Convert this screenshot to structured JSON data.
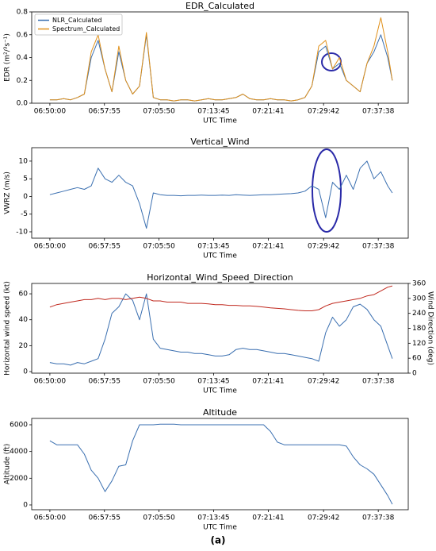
{
  "chart_data": [
    {
      "type": "line",
      "title": "EDR_Calculated",
      "xlabel": "UTC Time",
      "ylabel": "EDR (m²/³s⁻¹)",
      "legend": "upper left",
      "xlim": [
        "06:47:22",
        "07:41:59"
      ],
      "xticks": [
        "06:50:00",
        "06:57:55",
        "07:05:50",
        "07:13:45",
        "07:21:41",
        "07:29:42",
        "07:37:38"
      ],
      "ylim": [
        0,
        0.8
      ],
      "yticks": [
        {
          "value": 0,
          "label": "0.0"
        },
        {
          "value": 0.2,
          "label": "0.2"
        },
        {
          "value": 0.4,
          "label": "0.4"
        },
        {
          "value": 0.6,
          "label": "0.6"
        },
        {
          "value": 0.8,
          "label": "0.8"
        }
      ],
      "x": [
        "06:50:00",
        "06:51:00",
        "06:52:00",
        "06:53:00",
        "06:54:00",
        "06:55:00",
        "06:56:00",
        "06:57:00",
        "06:58:00",
        "06:59:00",
        "07:00:00",
        "07:01:00",
        "07:02:00",
        "07:03:00",
        "07:04:00",
        "07:05:00",
        "07:06:00",
        "07:07:00",
        "07:08:00",
        "07:09:00",
        "07:10:00",
        "07:11:00",
        "07:12:00",
        "07:13:00",
        "07:14:00",
        "07:15:00",
        "07:16:00",
        "07:17:00",
        "07:18:00",
        "07:19:00",
        "07:20:00",
        "07:21:00",
        "07:22:00",
        "07:23:00",
        "07:24:00",
        "07:25:00",
        "07:26:00",
        "07:27:00",
        "07:28:00",
        "07:29:00",
        "07:30:00",
        "07:31:00",
        "07:32:00",
        "07:33:00",
        "07:34:00",
        "07:35:00",
        "07:36:00",
        "07:37:00",
        "07:38:00",
        "07:39:00",
        "07:39:40"
      ],
      "series": [
        {
          "name": "NLR_Calculated",
          "color": "#3a6fb0",
          "values": [
            0.03,
            0.03,
            0.04,
            0.03,
            0.05,
            0.08,
            0.4,
            0.55,
            0.3,
            0.1,
            0.45,
            0.2,
            0.08,
            0.15,
            0.6,
            0.05,
            0.03,
            0.03,
            0.02,
            0.03,
            0.03,
            0.02,
            0.03,
            0.04,
            0.03,
            0.03,
            0.04,
            0.05,
            0.08,
            0.04,
            0.03,
            0.03,
            0.04,
            0.03,
            0.03,
            0.02,
            0.03,
            0.05,
            0.15,
            0.45,
            0.5,
            0.3,
            0.35,
            0.2,
            0.15,
            0.1,
            0.35,
            0.45,
            0.6,
            0.4,
            0.2
          ]
        },
        {
          "name": "Spectrum_Calculated",
          "color": "#e0901a",
          "values": [
            0.03,
            0.03,
            0.04,
            0.03,
            0.05,
            0.08,
            0.45,
            0.6,
            0.3,
            0.1,
            0.5,
            0.2,
            0.08,
            0.15,
            0.62,
            0.05,
            0.03,
            0.03,
            0.02,
            0.03,
            0.03,
            0.02,
            0.03,
            0.04,
            0.03,
            0.03,
            0.04,
            0.05,
            0.08,
            0.04,
            0.03,
            0.03,
            0.04,
            0.03,
            0.03,
            0.02,
            0.03,
            0.05,
            0.15,
            0.5,
            0.55,
            0.3,
            0.4,
            0.2,
            0.15,
            0.1,
            0.35,
            0.5,
            0.75,
            0.45,
            0.2
          ]
        }
      ]
    },
    {
      "type": "line",
      "title": "Vertical_Wind",
      "xlabel": "UTC Time",
      "ylabel": "VWRZ (m/s)",
      "xlim": [
        "06:47:22",
        "07:41:59"
      ],
      "xticks": [
        "06:50:00",
        "06:57:55",
        "07:05:50",
        "07:13:45",
        "07:21:41",
        "07:29:42",
        "07:37:38"
      ],
      "ylim": [
        -11.8,
        13.8
      ],
      "yticks": [
        -10,
        -5,
        0,
        5,
        10
      ],
      "x": [
        "06:50:00",
        "06:51:00",
        "06:52:00",
        "06:53:00",
        "06:54:00",
        "06:55:00",
        "06:56:00",
        "06:57:00",
        "06:58:00",
        "06:59:00",
        "07:00:00",
        "07:01:00",
        "07:02:00",
        "07:03:00",
        "07:04:00",
        "07:05:00",
        "07:06:00",
        "07:07:00",
        "07:08:00",
        "07:09:00",
        "07:10:00",
        "07:11:00",
        "07:12:00",
        "07:13:00",
        "07:14:00",
        "07:15:00",
        "07:16:00",
        "07:17:00",
        "07:18:00",
        "07:19:00",
        "07:20:00",
        "07:21:00",
        "07:22:00",
        "07:23:00",
        "07:24:00",
        "07:25:00",
        "07:26:00",
        "07:27:00",
        "07:28:00",
        "07:29:00",
        "07:30:00",
        "07:31:00",
        "07:32:00",
        "07:33:00",
        "07:34:00",
        "07:35:00",
        "07:36:00",
        "07:37:00",
        "07:38:00",
        "07:39:00",
        "07:39:40"
      ],
      "color": "#3a6fb0",
      "values": [
        0.5,
        1,
        1.5,
        2,
        2.5,
        2,
        3,
        8,
        5,
        4,
        6,
        4,
        3,
        -2,
        -9,
        1,
        0.5,
        0.3,
        0.3,
        0.2,
        0.3,
        0.3,
        0.4,
        0.3,
        0.3,
        0.4,
        0.3,
        0.5,
        0.4,
        0.3,
        0.4,
        0.5,
        0.5,
        0.6,
        0.7,
        0.8,
        1,
        1.5,
        3,
        2,
        -6,
        4,
        2,
        6,
        2,
        8,
        10,
        5,
        7,
        3,
        1
      ]
    },
    {
      "type": "line",
      "title": "Horizontal_Wind_Speed_Direction",
      "xlabel": "UTC Time",
      "ylabel": "Horizontal wind speed (kt)",
      "y2label": "Wind Direction (deg)",
      "xlim": [
        "06:47:22",
        "07:41:59"
      ],
      "xticks": [
        "06:50:00",
        "06:57:55",
        "07:05:50",
        "07:13:45",
        "07:21:41",
        "07:29:42",
        "07:37:38"
      ],
      "ylim": [
        -1.2,
        68
      ],
      "yticks": [
        0,
        20,
        40,
        60
      ],
      "y2lim": [
        0,
        360
      ],
      "y2ticks": [
        0,
        60,
        120,
        180,
        240,
        300,
        360
      ],
      "x": [
        "06:50:00",
        "06:51:00",
        "06:52:00",
        "06:53:00",
        "06:54:00",
        "06:55:00",
        "06:56:00",
        "06:57:00",
        "06:58:00",
        "06:59:00",
        "07:00:00",
        "07:01:00",
        "07:02:00",
        "07:03:00",
        "07:04:00",
        "07:05:00",
        "07:06:00",
        "07:07:00",
        "07:08:00",
        "07:09:00",
        "07:10:00",
        "07:11:00",
        "07:12:00",
        "07:13:00",
        "07:14:00",
        "07:15:00",
        "07:16:00",
        "07:17:00",
        "07:18:00",
        "07:19:00",
        "07:20:00",
        "07:21:00",
        "07:22:00",
        "07:23:00",
        "07:24:00",
        "07:25:00",
        "07:26:00",
        "07:27:00",
        "07:28:00",
        "07:29:00",
        "07:30:00",
        "07:31:00",
        "07:32:00",
        "07:33:00",
        "07:34:00",
        "07:35:00",
        "07:36:00",
        "07:37:00",
        "07:38:00",
        "07:39:00",
        "07:39:40"
      ],
      "series": [
        {
          "color": "#3a6fb0",
          "values": [
            7,
            6,
            6,
            5,
            7,
            6,
            8,
            10,
            25,
            45,
            50,
            60,
            55,
            40,
            60,
            25,
            18,
            17,
            16,
            15,
            15,
            14,
            14,
            13,
            12,
            12,
            13,
            17,
            18,
            17,
            17,
            16,
            15,
            14,
            14,
            13,
            12,
            11,
            10,
            8,
            30,
            42,
            35,
            40,
            50,
            52,
            48,
            40,
            35,
            20,
            10
          ]
        },
        {
          "color": "#c0281e",
          "axis": "y2",
          "values": [
            265,
            275,
            280,
            285,
            290,
            295,
            295,
            300,
            295,
            300,
            300,
            295,
            300,
            305,
            300,
            290,
            290,
            285,
            285,
            285,
            280,
            280,
            280,
            278,
            275,
            275,
            272,
            272,
            270,
            270,
            268,
            265,
            262,
            260,
            258,
            255,
            252,
            250,
            250,
            255,
            270,
            280,
            285,
            290,
            295,
            300,
            310,
            315,
            330,
            345,
            350
          ]
        }
      ]
    },
    {
      "type": "line",
      "title": "Altitude",
      "xlabel": "UTC Time",
      "ylabel": "Altitude (ft)",
      "xlim": [
        "06:47:22",
        "07:41:59"
      ],
      "xticks": [
        "06:50:00",
        "06:57:55",
        "07:05:50",
        "07:13:45",
        "07:21:41",
        "07:29:42",
        "07:37:38"
      ],
      "ylim": [
        -357,
        6475
      ],
      "yticks": [
        0,
        2000,
        4000,
        6000
      ],
      "x": [
        "06:50:00",
        "06:51:00",
        "06:52:00",
        "06:53:00",
        "06:54:00",
        "06:55:00",
        "06:56:00",
        "06:57:00",
        "06:58:00",
        "06:59:00",
        "07:00:00",
        "07:01:00",
        "07:02:00",
        "07:03:00",
        "07:04:00",
        "07:05:00",
        "07:06:00",
        "07:07:00",
        "07:08:00",
        "07:09:00",
        "07:10:00",
        "07:11:00",
        "07:12:00",
        "07:13:00",
        "07:14:00",
        "07:15:00",
        "07:16:00",
        "07:17:00",
        "07:18:00",
        "07:19:00",
        "07:20:00",
        "07:21:00",
        "07:22:00",
        "07:23:00",
        "07:24:00",
        "07:25:00",
        "07:26:00",
        "07:27:00",
        "07:28:00",
        "07:29:00",
        "07:30:00",
        "07:31:00",
        "07:32:00",
        "07:33:00",
        "07:34:00",
        "07:35:00",
        "07:36:00",
        "07:37:00",
        "07:38:00",
        "07:39:00",
        "07:39:40"
      ],
      "color": "#3a6fb0",
      "values": [
        4800,
        4500,
        4500,
        4500,
        4500,
        3800,
        2600,
        2000,
        1000,
        1800,
        2900,
        3000,
        4800,
        6000,
        6000,
        6000,
        6050,
        6050,
        6050,
        6000,
        6000,
        6000,
        6000,
        6000,
        6000,
        6000,
        6000,
        6000,
        6000,
        6000,
        6000,
        6000,
        5500,
        4700,
        4500,
        4500,
        4500,
        4500,
        4500,
        4500,
        4500,
        4500,
        4500,
        4400,
        3600,
        3000,
        2700,
        2300,
        1500,
        700,
        50
      ]
    }
  ],
  "caption": "(a)"
}
